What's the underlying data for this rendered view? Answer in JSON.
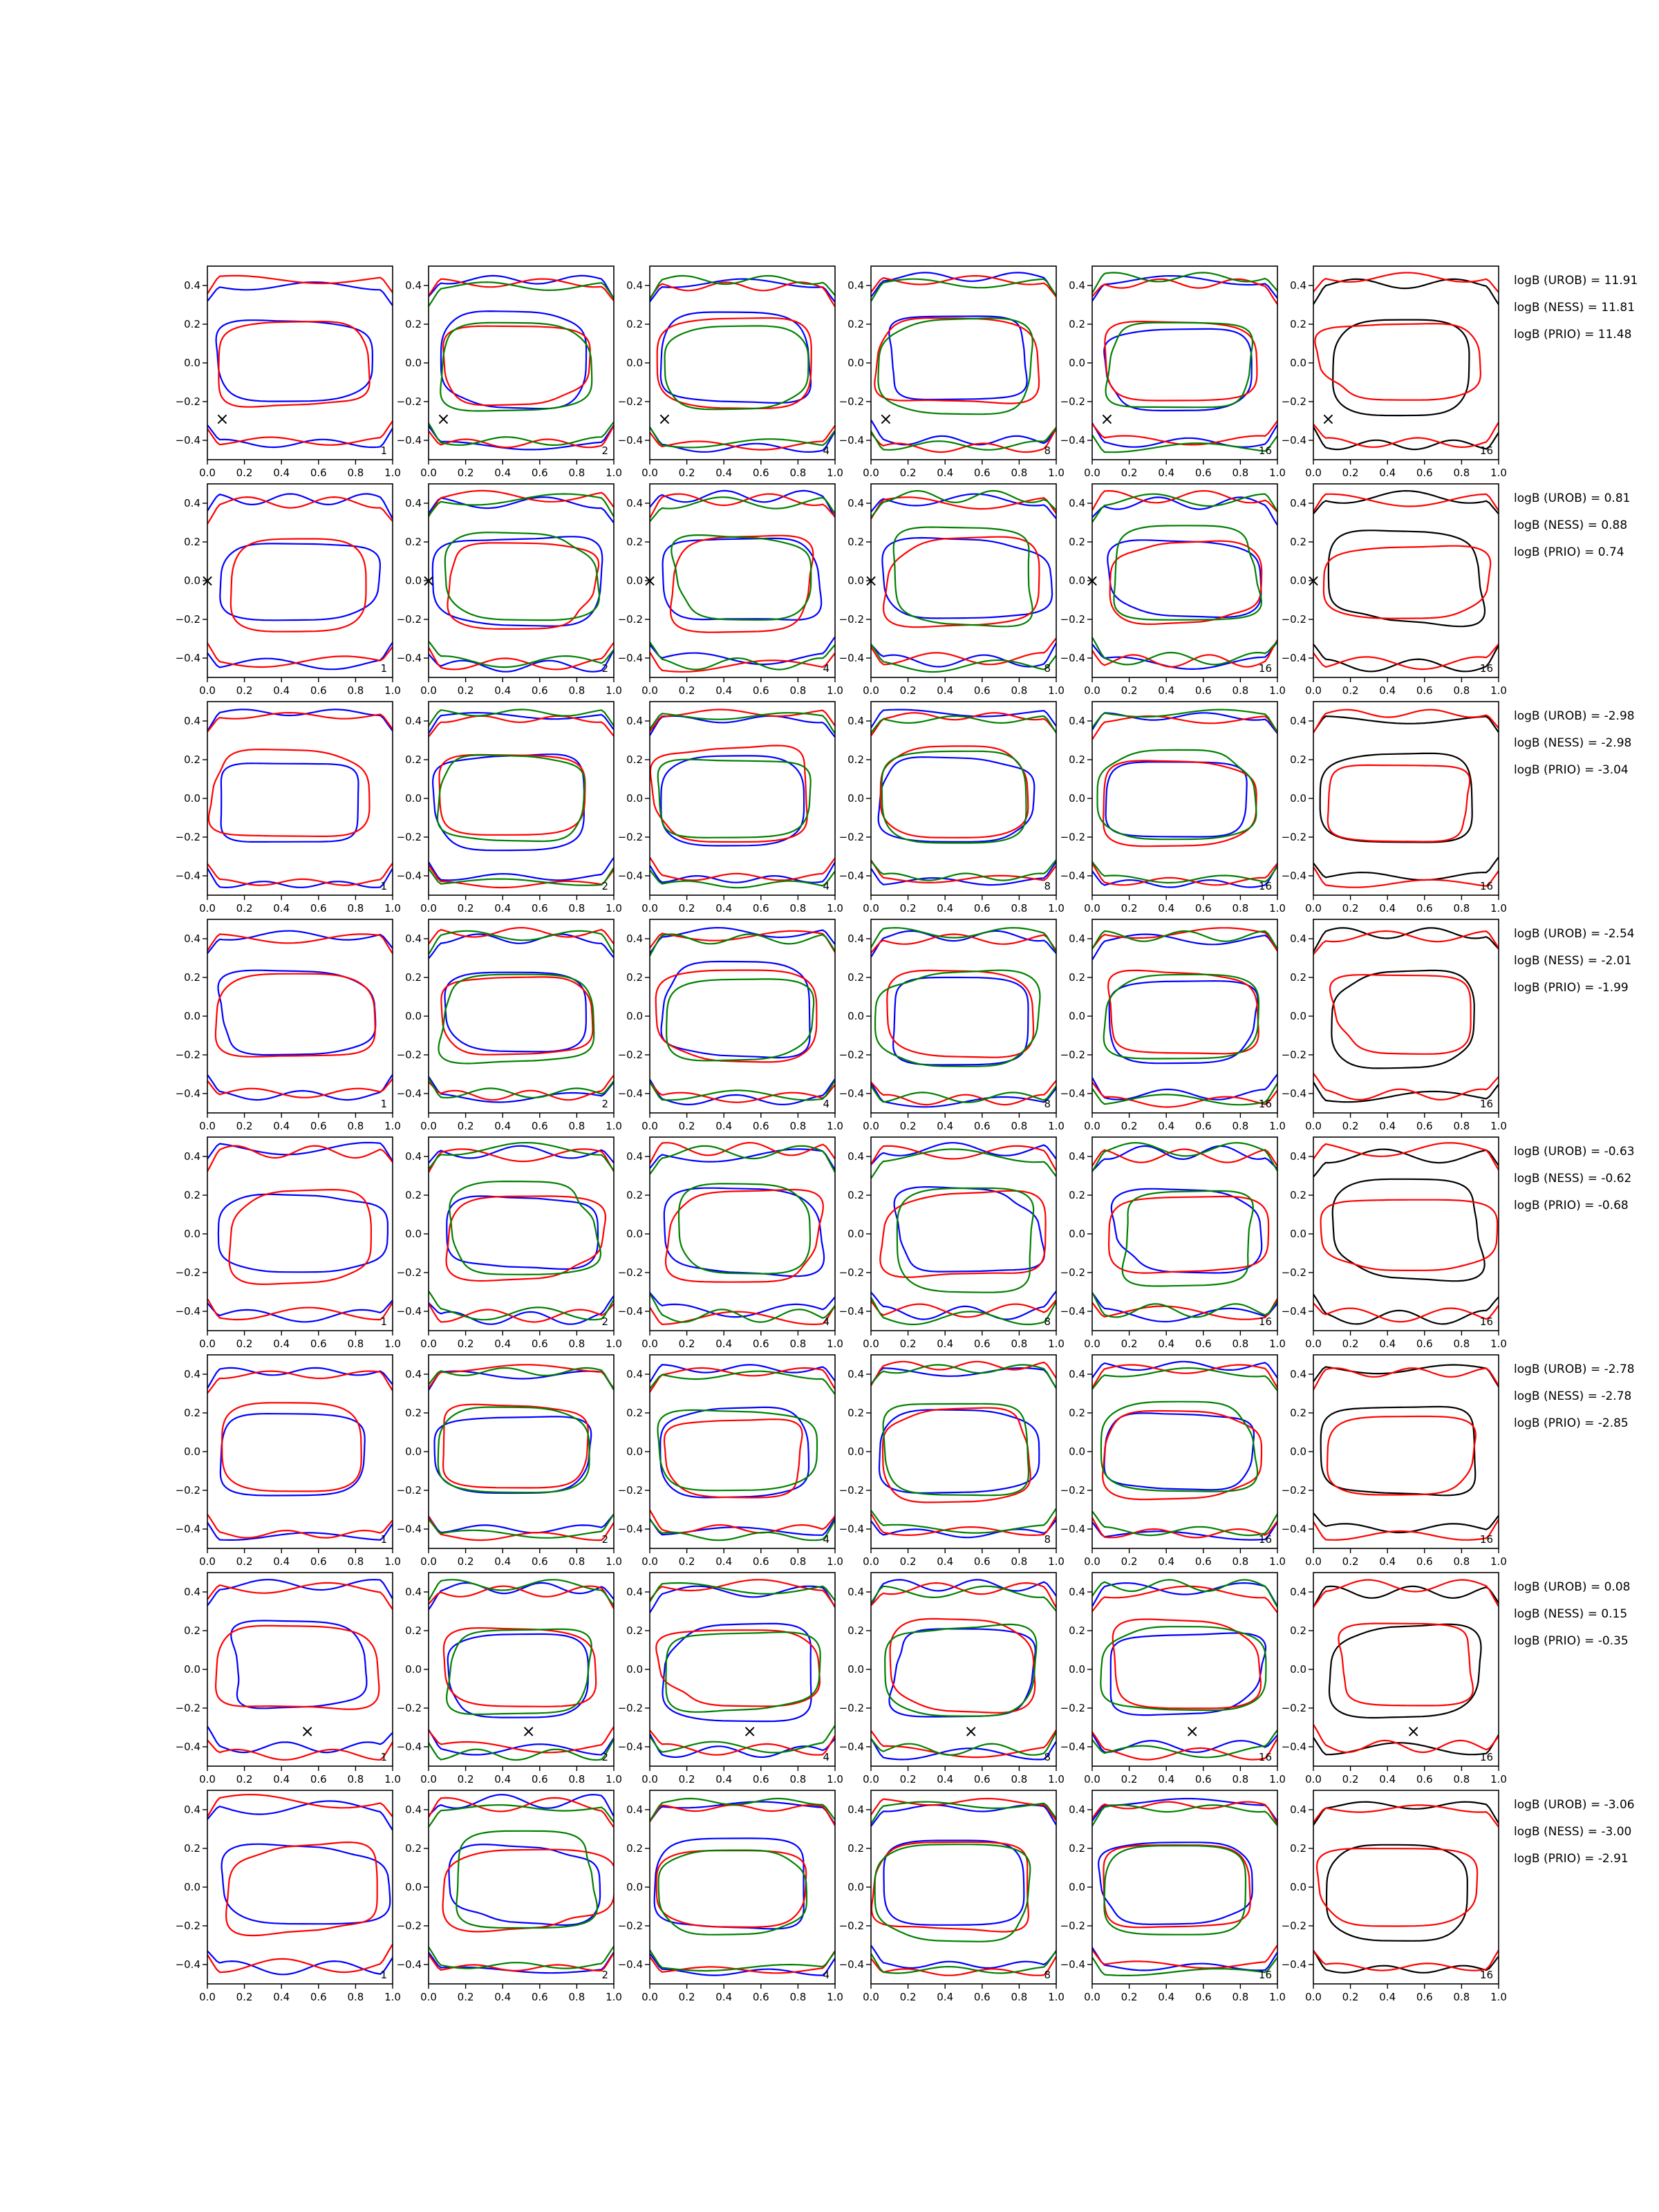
{
  "figure": {
    "rows": 8,
    "cols": 6,
    "panel_corner_labels": [
      "1",
      "2",
      "4",
      "8",
      "16",
      "16"
    ],
    "series_colors": {
      "blue": "#0000ff",
      "red": "#ff0000",
      "green": "#008000",
      "black": "#000000"
    },
    "log_prefix": "logB",
    "log_labels": [
      "(UROB)",
      "(NESS)",
      "(PRIO)"
    ],
    "marker": "×"
  },
  "chart_data": {
    "type": "line",
    "title": "",
    "xlabel": "",
    "ylabel": "",
    "xlim": [
      0.0,
      1.0
    ],
    "ylim": [
      -0.5,
      0.5
    ],
    "x_ticks": [
      "0.0",
      "0.2",
      "0.4",
      "0.6",
      "0.8",
      "1.0"
    ],
    "y_ticks": [
      "0.4",
      "0.2",
      "0.0",
      "−0.2",
      "−0.4"
    ],
    "grid": false,
    "rows": [
      {
        "marker": [
          0.08,
          -0.29
        ],
        "logB": {
          "UROB": "11.91",
          "NESS": "11.81",
          "PRIO": "11.48"
        }
      },
      {
        "marker": [
          0.0,
          0.0
        ],
        "logB": {
          "UROB": "0.81",
          "NESS": "0.88",
          "PRIO": "0.74"
        }
      },
      {
        "marker": null,
        "logB": {
          "UROB": "-2.98",
          "NESS": "-2.98",
          "PRIO": "-3.04"
        }
      },
      {
        "marker": null,
        "logB": {
          "UROB": "-2.54",
          "NESS": "-2.01",
          "PRIO": "-1.99"
        }
      },
      {
        "marker": null,
        "logB": {
          "UROB": "-0.63",
          "NESS": "-0.62",
          "PRIO": "-0.68"
        }
      },
      {
        "marker": null,
        "logB": {
          "UROB": "-2.78",
          "NESS": "-2.78",
          "PRIO": "-2.85"
        }
      },
      {
        "marker": [
          0.54,
          -0.32
        ],
        "logB": {
          "UROB": "0.08",
          "NESS": "0.15",
          "PRIO": "-0.35"
        }
      },
      {
        "marker": null,
        "logB": {
          "UROB": "-3.06",
          "NESS": "-3.00",
          "PRIO": "-2.91"
        }
      }
    ],
    "contour_style": {
      "outer_band": {
        "y_top": 0.42,
        "y_bottom": -0.42
      },
      "inner_loop": {
        "cx": 0.48,
        "cy": 0.0,
        "rx": 0.4,
        "ry": 0.22
      }
    }
  }
}
